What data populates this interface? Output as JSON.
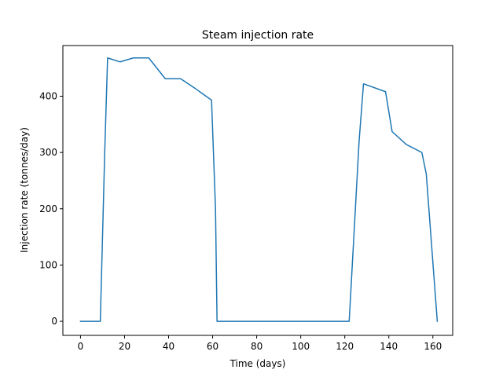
{
  "chart_data": {
    "type": "line",
    "title": "Steam injection rate",
    "xlabel": "Time (days)",
    "ylabel": "Injection rate (tonnes/day)",
    "xlim": [
      -8,
      169
    ],
    "ylim": [
      -25,
      490
    ],
    "xticks": [
      0,
      20,
      40,
      60,
      80,
      100,
      120,
      140,
      160
    ],
    "yticks": [
      0,
      100,
      200,
      300,
      400
    ],
    "grid": false,
    "series": [
      {
        "color": "#1f77b4",
        "x": [
          0,
          9,
          11,
          12.3,
          18,
          24,
          31,
          38.5,
          45.5,
          52,
          59.5,
          61.3,
          62,
          122,
          126.5,
          128.5,
          138.5,
          141.5,
          148,
          155,
          157,
          162
        ],
        "y": [
          0,
          0,
          300,
          468,
          461,
          468,
          468,
          431,
          431,
          414,
          393,
          200,
          0,
          0,
          320,
          422,
          408,
          337,
          314,
          300,
          262,
          0
        ]
      }
    ]
  }
}
